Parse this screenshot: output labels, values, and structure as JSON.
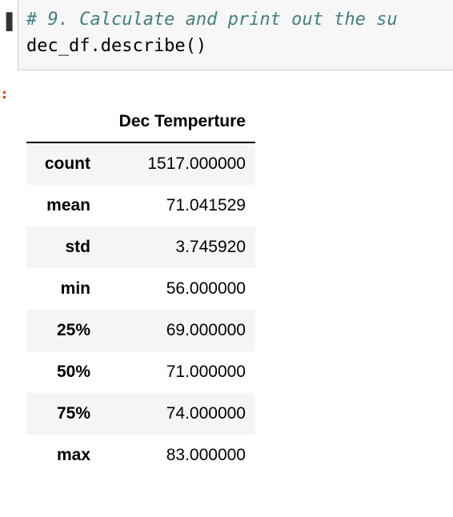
{
  "input_cell": {
    "marker": "▐",
    "comment": "# 9. Calculate and print out the su",
    "code": "dec_df.describe()"
  },
  "output_prompt": ":",
  "table": {
    "column_header": "Dec Temperture",
    "rows": [
      {
        "label": "count",
        "value": "1517.000000"
      },
      {
        "label": "mean",
        "value": "71.041529"
      },
      {
        "label": "std",
        "value": "3.745920"
      },
      {
        "label": "min",
        "value": "56.000000"
      },
      {
        "label": "25%",
        "value": "69.000000"
      },
      {
        "label": "50%",
        "value": "71.000000"
      },
      {
        "label": "75%",
        "value": "74.000000"
      },
      {
        "label": "max",
        "value": "83.000000"
      }
    ]
  }
}
